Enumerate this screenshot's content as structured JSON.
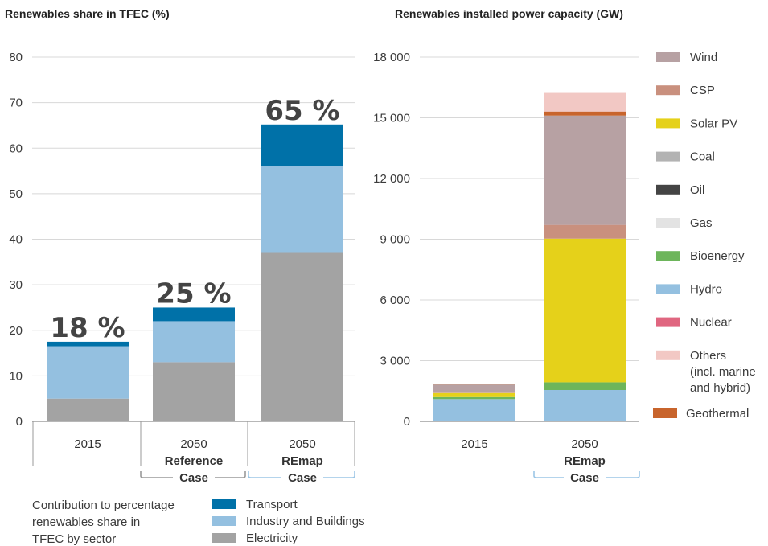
{
  "chart_data": [
    {
      "type": "bar",
      "stacked": true,
      "title": "Renewables share in TFEC (%)",
      "ylim": [
        0,
        80
      ],
      "yticks": [
        "0",
        "10",
        "20",
        "30",
        "40",
        "50",
        "60",
        "70",
        "80"
      ],
      "grid": true,
      "categories": [
        {
          "line1": "2015",
          "line2": "",
          "line3": "",
          "group": ""
        },
        {
          "line1": "2050",
          "line2": "Reference",
          "line3": "Case",
          "group": "reference"
        },
        {
          "line1": "2050",
          "line2": "REmap",
          "line3": "Case",
          "group": "remap"
        }
      ],
      "totals": [
        "18 %",
        "25 %",
        "65 %"
      ],
      "series": [
        {
          "name": "Electricity",
          "color": "#a3a3a3",
          "values": [
            5,
            13,
            37
          ]
        },
        {
          "name": "Industry and Buildings",
          "color": "#94c0e0",
          "values": [
            11.5,
            9,
            19
          ]
        },
        {
          "name": "Transport",
          "color": "#0071a8",
          "values": [
            1,
            3,
            9.2
          ]
        }
      ],
      "legend": {
        "caption": [
          "Contribution to percentage",
          "renewables share in",
          "TFEC by sector"
        ],
        "items": [
          {
            "label": "Transport",
            "color": "#0071a8"
          },
          {
            "label": "Industry and Buildings",
            "color": "#94c0e0"
          },
          {
            "label": "Electricity",
            "color": "#a3a3a3"
          }
        ]
      }
    },
    {
      "type": "bar",
      "stacked": true,
      "title": "Renewables installed power capacity (GW)",
      "ylim": [
        0,
        18000
      ],
      "yticks": [
        "0",
        "3 000",
        "6 000",
        "9 000",
        "12 000",
        "15 000",
        "18 000"
      ],
      "grid": true,
      "categories": [
        {
          "line1": "2015",
          "line2": "",
          "line3": "",
          "group": ""
        },
        {
          "line1": "2050",
          "line2": "REmap",
          "line3": "Case",
          "group": "remap"
        }
      ],
      "series": [
        {
          "name": "Hydro",
          "color": "#94c0e0",
          "values": [
            1100,
            1550
          ]
        },
        {
          "name": "Bioenergy",
          "color": "#6db55b",
          "values": [
            100,
            380
          ]
        },
        {
          "name": "Solar PV",
          "color": "#e5d11a",
          "values": [
            200,
            7100
          ]
        },
        {
          "name": "CSP",
          "color": "#c9907e",
          "values": [
            20,
            680
          ]
        },
        {
          "name": "Wind",
          "color": "#b7a1a3",
          "values": [
            400,
            5400
          ]
        },
        {
          "name": "Geothermal",
          "color": "#c8642c",
          "values": [
            15,
            200
          ]
        },
        {
          "name": "Others (incl. marine and hybrid)",
          "color": "#f2c8c4",
          "values": [
            0,
            920
          ]
        }
      ],
      "legend": {
        "items": [
          {
            "label": [
              "Wind"
            ],
            "color": "#b7a1a3"
          },
          {
            "label": [
              "CSP"
            ],
            "color": "#c9907e"
          },
          {
            "label": [
              "Solar PV"
            ],
            "color": "#e5d11a"
          },
          {
            "label": [
              "Coal"
            ],
            "color": "#b3b3b3"
          },
          {
            "label": [
              "Oil"
            ],
            "color": "#444444"
          },
          {
            "label": [
              "Gas"
            ],
            "color": "#e3e3e3"
          },
          {
            "label": [
              "Bioenergy"
            ],
            "color": "#6db55b"
          },
          {
            "label": [
              "Hydro"
            ],
            "color": "#94c0e0"
          },
          {
            "label": [
              "Nuclear"
            ],
            "color": "#e06680"
          },
          {
            "label": [
              "Others",
              "(incl. marine",
              "and hybrid)"
            ],
            "color": "#f2c8c4"
          },
          {
            "label": [
              "Geothermal"
            ],
            "color": "#c8642c"
          }
        ]
      }
    }
  ],
  "brackets": {
    "reference": "#9a9a9a",
    "remap": "#9cc6e6"
  }
}
